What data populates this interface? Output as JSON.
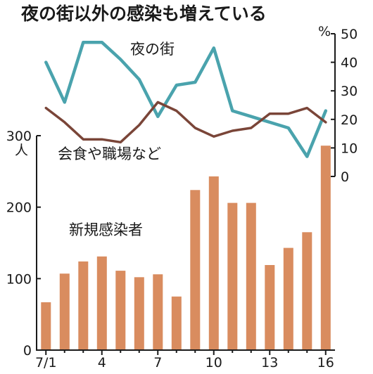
{
  "chart_data": {
    "type": "bar+line",
    "title": "夜の街以外の感染も増えている",
    "categories": [
      "7/1",
      "7/2",
      "7/3",
      "7/4",
      "7/5",
      "7/6",
      "7/7",
      "7/8",
      "7/9",
      "7/10",
      "7/11",
      "7/12",
      "7/13",
      "7/14",
      "7/15",
      "7/16"
    ],
    "x_tick_labels": {
      "0": "7/1",
      "3": "4",
      "6": "7",
      "9": "10",
      "12": "13",
      "15": "16"
    },
    "bars": {
      "name": "新規感染者",
      "color": "#d98c5f",
      "values": [
        67,
        107,
        124,
        131,
        111,
        102,
        106,
        75,
        224,
        243,
        206,
        206,
        119,
        143,
        165,
        286
      ]
    },
    "left_axis": {
      "unit": "人",
      "ylim": [
        0,
        300
      ],
      "ticks": [
        "0",
        "100",
        "200",
        "300"
      ]
    },
    "right_axis": {
      "unit": "%",
      "ylim": [
        0,
        50
      ],
      "ticks": [
        "0",
        "10",
        "20",
        "30",
        "40",
        "50"
      ]
    },
    "lines": [
      {
        "name": "夜の街",
        "color": "#4aa3ad",
        "values": [
          40,
          26,
          47,
          47,
          41,
          34,
          21,
          32,
          33,
          45,
          23,
          21,
          19,
          17,
          7,
          23
        ]
      },
      {
        "name": "会食や職場など",
        "color": "#7a4538",
        "values": [
          24,
          19,
          13,
          13,
          12,
          18,
          26,
          23,
          17,
          14,
          16,
          17,
          22,
          22,
          24,
          19
        ]
      }
    ],
    "grid": false
  }
}
